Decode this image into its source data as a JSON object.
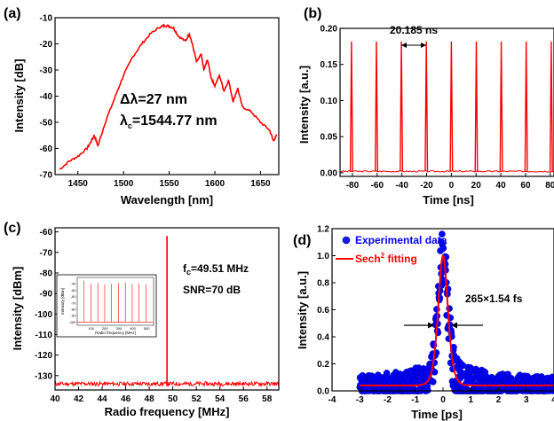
{
  "chart_data": [
    {
      "panel": "(a)",
      "type": "line",
      "xlabel": "Wavelength [nm]",
      "ylabel": "Intensity [dB]",
      "xlim": [
        1425,
        1670
      ],
      "ylim": [
        -70,
        -10
      ],
      "xticks": [
        1450,
        1500,
        1550,
        1600,
        1650
      ],
      "yticks": [
        -70,
        -60,
        -50,
        -40,
        -30,
        -20,
        -10
      ],
      "annotations": [
        "Δλ=27 nm",
        "λc=1544.77 nm"
      ],
      "color": "#ff0000",
      "series": [
        {
          "x": [
            1430,
            1440,
            1450,
            1460,
            1465,
            1468,
            1472,
            1480,
            1490,
            1500,
            1510,
            1520,
            1530,
            1540,
            1545,
            1550,
            1555,
            1560,
            1568,
            1572,
            1576,
            1580,
            1585,
            1588,
            1592,
            1596,
            1600,
            1605,
            1610,
            1615,
            1620,
            1625,
            1630,
            1640,
            1650,
            1660,
            1664,
            1668
          ],
          "y": [
            -68,
            -65,
            -63,
            -60,
            -57,
            -55,
            -59,
            -50,
            -41,
            -32,
            -25,
            -20,
            -16,
            -13.5,
            -13,
            -13.2,
            -14,
            -17,
            -19,
            -16,
            -21,
            -27,
            -24,
            -30,
            -26,
            -33,
            -36,
            -32,
            -38,
            -34,
            -42,
            -37,
            -44,
            -46,
            -50,
            -53,
            -57,
            -55
          ]
        }
      ]
    },
    {
      "panel": "(b)",
      "type": "line",
      "xlabel": "Time [ns]",
      "ylabel": "Intensity [a.u.]",
      "xlim": [
        -90,
        83
      ],
      "ylim": [
        -0.005,
        0.2
      ],
      "xticks": [
        -80,
        -60,
        -40,
        -20,
        0,
        20,
        40,
        60,
        80
      ],
      "yticks": [
        0.0,
        0.05,
        0.1,
        0.15,
        0.2
      ],
      "annotation": "20.185 ns",
      "pulse_period_ns": 20.185,
      "pulse_peak": 0.182,
      "pulse_times_ns": [
        -80.74,
        -60.56,
        -40.37,
        -20.19,
        0.0,
        20.19,
        40.37,
        60.56,
        80.74
      ],
      "color": "#ff0000"
    },
    {
      "panel": "(c)",
      "type": "line",
      "xlabel": "Radio frequency [MHz]",
      "ylabel": "Intensity [dBm]",
      "xlim": [
        40,
        59
      ],
      "ylim": [
        -137,
        -58
      ],
      "xticks": [
        40,
        42,
        44,
        46,
        48,
        50,
        52,
        54,
        56,
        58
      ],
      "yticks": [
        -60,
        -70,
        -80,
        -90,
        -100,
        -110,
        -120,
        -130
      ],
      "annotations": [
        "fc=49.51 MHz",
        "SNR=70 dB"
      ],
      "peak_frequency_mhz": 49.51,
      "peak_level_dbm": -62,
      "noise_floor_dbm": -134,
      "color": "#ff0000",
      "inset": {
        "xlabel": "Radio frequency [MHz]",
        "ylabel": "Intensity [dBm]",
        "xlim": [
          0,
          550
        ],
        "ylim": [
          -105,
          -30
        ],
        "xticks": [
          100,
          200,
          300,
          400,
          500
        ],
        "yticks": [
          -40,
          -50,
          -60,
          -70,
          -80,
          -90,
          -100
        ],
        "harmonic_spacing_mhz": 49.51,
        "harmonic_peaks_dbm": [
          -35,
          -40,
          -39,
          -41,
          -40,
          -39,
          -38,
          -40,
          -39,
          -41
        ]
      }
    },
    {
      "panel": "(d)",
      "type": "scatter",
      "xlabel": "Time [ps]",
      "ylabel": "Intensity [a.u.]",
      "xlim": [
        -4,
        4
      ],
      "ylim": [
        0,
        1.2
      ],
      "xticks": [
        -4,
        -3,
        -2,
        -1,
        0,
        1,
        2,
        3,
        4
      ],
      "yticks": [
        0.0,
        0.2,
        0.4,
        0.6,
        0.8,
        1.0,
        1.2
      ],
      "annotation": "265×1.54 fs",
      "legend": [
        "Experimental data",
        "Sech2 fitting"
      ],
      "legend_position": "top-left",
      "data_color": "#0000ff",
      "fit_color": "#ff0000",
      "fit": {
        "model": "sech2",
        "peak": 1.0,
        "center": 0.0,
        "baseline": 0.04,
        "fwhm_ps": 0.41
      }
    }
  ]
}
